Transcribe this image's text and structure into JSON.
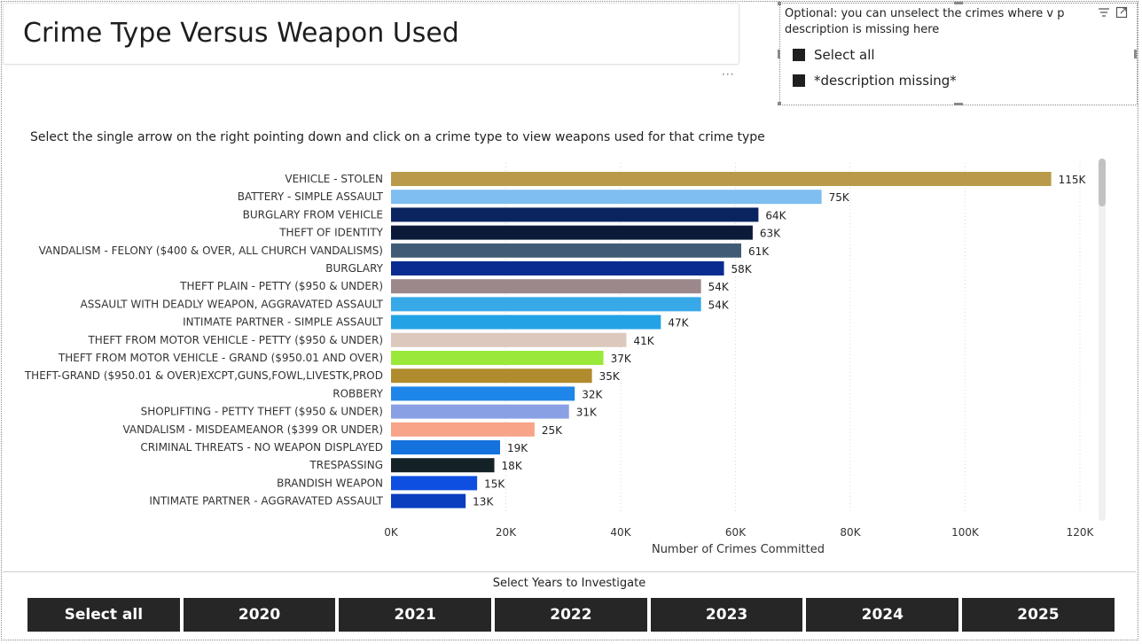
{
  "page": {
    "title": "Crime Type Versus Weapon Used",
    "instruction": "Select the single arrow on the right pointing down and click on a crime type to view weapons used for that crime type"
  },
  "slicer": {
    "heading": "Optional: you can unselect the crimes where v p description is missing here",
    "options": [
      "Select all",
      "*description missing*"
    ]
  },
  "years": {
    "title": "Select Years to Investigate",
    "buttons": [
      "Select all",
      "2020",
      "2021",
      "2022",
      "2023",
      "2024",
      "2025"
    ]
  },
  "chart_data": {
    "type": "bar",
    "orientation": "horizontal",
    "xlabel": "Number of Crimes Committed",
    "xlim": [
      0,
      120000
    ],
    "xticks": [
      0,
      20000,
      40000,
      60000,
      80000,
      100000,
      120000
    ],
    "xtick_labels": [
      "0K",
      "20K",
      "40K",
      "60K",
      "80K",
      "100K",
      "120K"
    ],
    "grid": true,
    "categories": [
      "VEHICLE - STOLEN",
      "BATTERY - SIMPLE ASSAULT",
      "BURGLARY FROM VEHICLE",
      "THEFT OF IDENTITY",
      "VANDALISM - FELONY ($400 & OVER, ALL CHURCH VANDALISMS)",
      "BURGLARY",
      "THEFT PLAIN - PETTY ($950 & UNDER)",
      "ASSAULT WITH DEADLY WEAPON, AGGRAVATED ASSAULT",
      "INTIMATE PARTNER - SIMPLE ASSAULT",
      "THEFT FROM MOTOR VEHICLE - PETTY ($950 & UNDER)",
      "THEFT FROM MOTOR VEHICLE - GRAND ($950.01 AND OVER)",
      "THEFT-GRAND ($950.01 & OVER)EXCPT,GUNS,FOWL,LIVESTK,PROD",
      "ROBBERY",
      "SHOPLIFTING - PETTY THEFT ($950 & UNDER)",
      "VANDALISM - MISDEAMEANOR ($399 OR UNDER)",
      "CRIMINAL THREATS - NO WEAPON DISPLAYED",
      "TRESPASSING",
      "BRANDISH WEAPON",
      "INTIMATE PARTNER - AGGRAVATED ASSAULT"
    ],
    "values": [
      115000,
      75000,
      64000,
      63000,
      61000,
      58000,
      54000,
      54000,
      47000,
      41000,
      37000,
      35000,
      32000,
      31000,
      25000,
      19000,
      18000,
      15000,
      13000
    ],
    "value_labels": [
      "115K",
      "75K",
      "64K",
      "63K",
      "61K",
      "58K",
      "54K",
      "54K",
      "47K",
      "41K",
      "37K",
      "35K",
      "32K",
      "31K",
      "25K",
      "19K",
      "18K",
      "15K",
      "13K"
    ],
    "colors": [
      "#B89A4A",
      "#7EBEF0",
      "#0A2460",
      "#0C1A3A",
      "#3F5B75",
      "#0A2C90",
      "#9C888A",
      "#37A8E8",
      "#24A2E6",
      "#DCC8BC",
      "#9AE83A",
      "#B08C2E",
      "#1E86E8",
      "#8AA0E4",
      "#F8A488",
      "#1472DC",
      "#142228",
      "#0E4EE0",
      "#0A3EBE"
    ]
  }
}
